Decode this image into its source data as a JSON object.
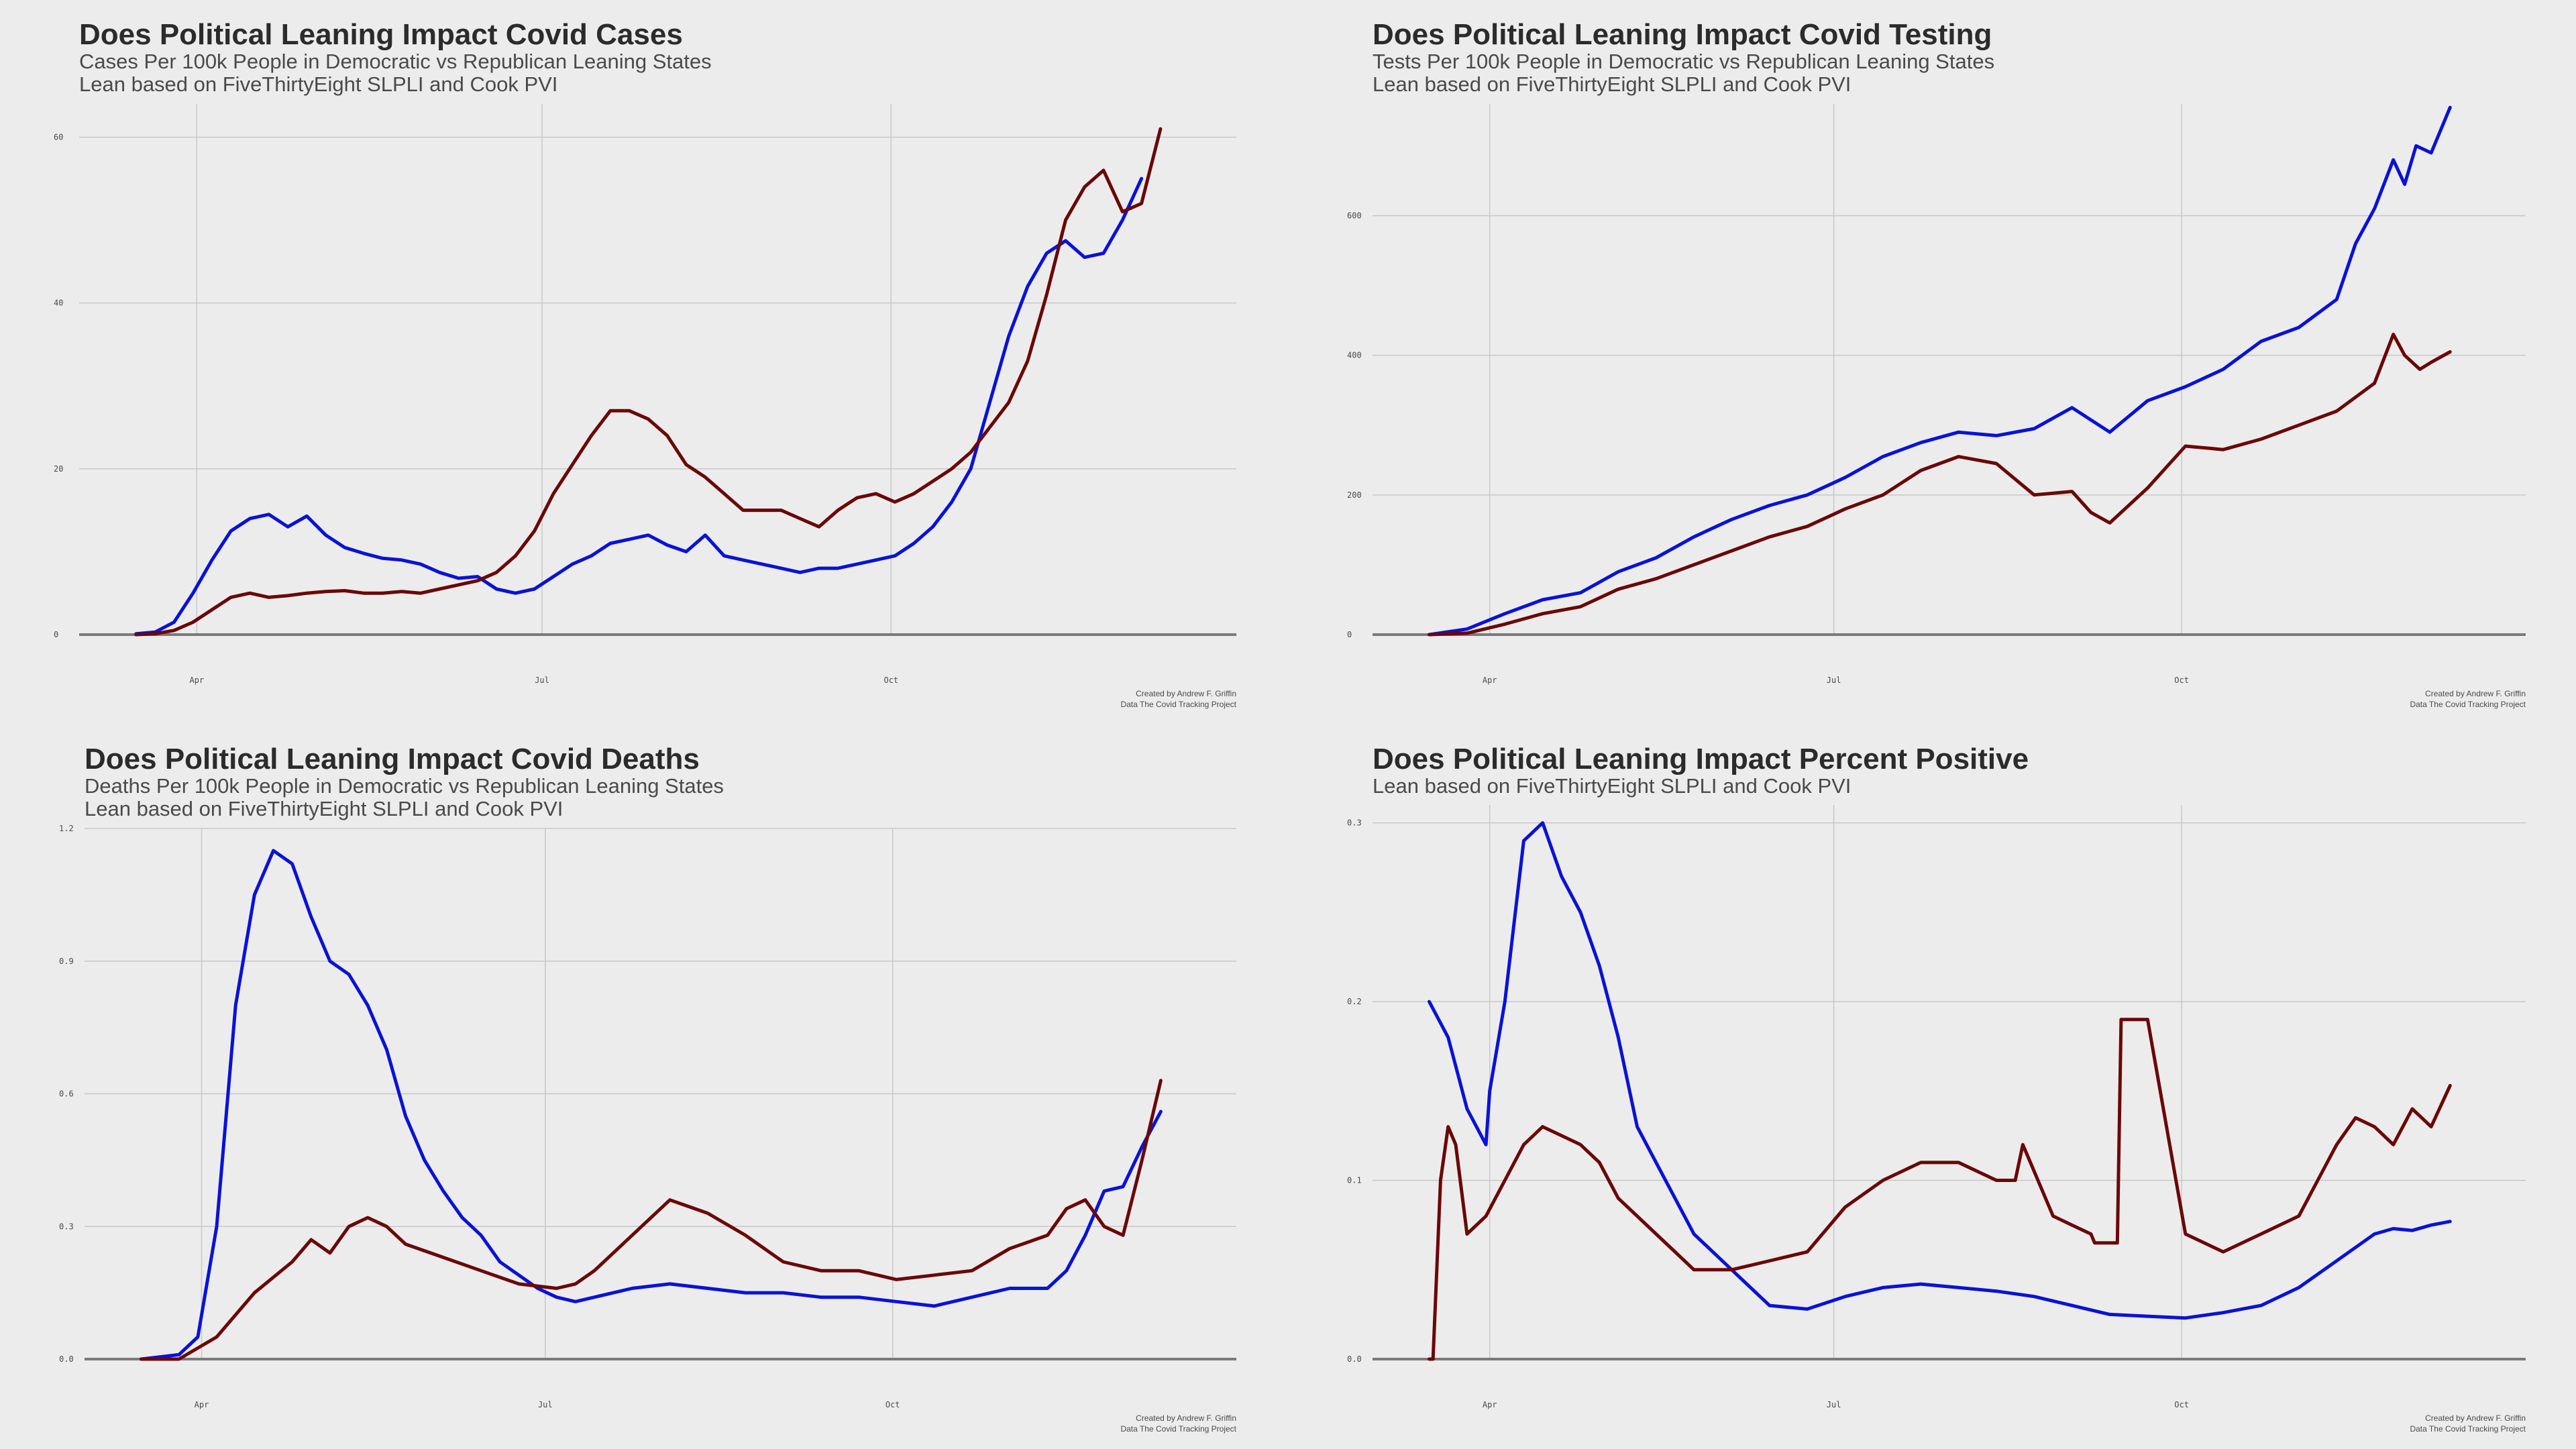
{
  "colors": {
    "background": "#ececec",
    "grid": "#c8c8c8",
    "baseline": "#7a7a7a",
    "democratic": "#0a12d6",
    "republican": "#6b0707"
  },
  "chart_data": [
    {
      "type": "line",
      "title": "Does Political Leaning Impact Covid Cases",
      "subtitle_lines": [
        "Cases Per 100k People in Democratic vs Republican Leaning States",
        "Lean based on FiveThirtyEight SLPLI and Cook PVI"
      ],
      "xlabel": "",
      "ylabel": "",
      "x_ticks": [
        "Apr",
        "Jul",
        "Oct"
      ],
      "y_ticks": [
        "0",
        "20",
        "40",
        "60"
      ],
      "x_range": [
        "2020-03-01",
        "2020-12-31"
      ],
      "ylim": [
        0,
        64
      ],
      "grid": true,
      "legend": "none",
      "caption": [
        "Created by Andrew F. Griffin",
        "Data The Covid Tracking Project"
      ],
      "series": [
        {
          "color": "democratic",
          "x": [
            "2020-03-16",
            "2020-03-21",
            "2020-03-26",
            "2020-03-31",
            "2020-04-05",
            "2020-04-10",
            "2020-04-15",
            "2020-04-20",
            "2020-04-25",
            "2020-04-30",
            "2020-05-05",
            "2020-05-10",
            "2020-05-15",
            "2020-05-20",
            "2020-05-25",
            "2020-05-30",
            "2020-06-04",
            "2020-06-09",
            "2020-06-14",
            "2020-06-19",
            "2020-06-24",
            "2020-06-29",
            "2020-07-04",
            "2020-07-09",
            "2020-07-14",
            "2020-07-19",
            "2020-07-24",
            "2020-07-29",
            "2020-08-03",
            "2020-08-08",
            "2020-08-13",
            "2020-08-18",
            "2020-08-23",
            "2020-08-28",
            "2020-09-02",
            "2020-09-07",
            "2020-09-12",
            "2020-09-17",
            "2020-09-22",
            "2020-09-27",
            "2020-10-02",
            "2020-10-07",
            "2020-10-12",
            "2020-10-17",
            "2020-10-22",
            "2020-10-27",
            "2020-11-01",
            "2020-11-06",
            "2020-11-11",
            "2020-11-16",
            "2020-11-21",
            "2020-11-26",
            "2020-12-01",
            "2020-12-06",
            "2020-12-11"
          ],
          "y": [
            0.1,
            0.3,
            1.5,
            5,
            9,
            12.5,
            14,
            14.5,
            13,
            14.3,
            12,
            10.5,
            9.8,
            9.2,
            9,
            8.5,
            7.5,
            6.8,
            7,
            5.5,
            5,
            5.5,
            7,
            8.5,
            9.5,
            11,
            11.5,
            12,
            10.8,
            10,
            12,
            9.5,
            9,
            8.5,
            8,
            7.5,
            8,
            8,
            8.5,
            9,
            9.5,
            11,
            13,
            16,
            20,
            28,
            36,
            42,
            46,
            47.5,
            45.5,
            46,
            50,
            55,
            null
          ]
        },
        {
          "color": "republican",
          "x": [
            "2020-03-16",
            "2020-03-21",
            "2020-03-26",
            "2020-03-31",
            "2020-04-05",
            "2020-04-10",
            "2020-04-15",
            "2020-04-20",
            "2020-04-25",
            "2020-04-30",
            "2020-05-05",
            "2020-05-10",
            "2020-05-15",
            "2020-05-20",
            "2020-05-25",
            "2020-05-30",
            "2020-06-04",
            "2020-06-09",
            "2020-06-14",
            "2020-06-19",
            "2020-06-24",
            "2020-06-29",
            "2020-07-04",
            "2020-07-09",
            "2020-07-14",
            "2020-07-19",
            "2020-07-24",
            "2020-07-29",
            "2020-08-03",
            "2020-08-08",
            "2020-08-13",
            "2020-08-18",
            "2020-08-23",
            "2020-08-28",
            "2020-09-02",
            "2020-09-07",
            "2020-09-12",
            "2020-09-17",
            "2020-09-22",
            "2020-09-27",
            "2020-10-02",
            "2020-10-07",
            "2020-10-12",
            "2020-10-17",
            "2020-10-22",
            "2020-10-27",
            "2020-11-01",
            "2020-11-06",
            "2020-11-11",
            "2020-11-16",
            "2020-11-21",
            "2020-11-26",
            "2020-12-01",
            "2020-12-06",
            "2020-12-11"
          ],
          "y": [
            0,
            0.1,
            0.5,
            1.5,
            3,
            4.5,
            5,
            4.5,
            4.7,
            5,
            5.2,
            5.3,
            5,
            5,
            5.2,
            5,
            5.5,
            6,
            6.5,
            7.5,
            9.5,
            12.5,
            17,
            20.5,
            24,
            27,
            27,
            26,
            24,
            20.5,
            19,
            17,
            15,
            15,
            15,
            14,
            13,
            15,
            16.5,
            17,
            16,
            17,
            18.5,
            20,
            22,
            25,
            28,
            33,
            41,
            50,
            54,
            56,
            51,
            52,
            61
          ]
        }
      ]
    },
    {
      "type": "line",
      "title": "Does Political Leaning Impact Covid Testing",
      "subtitle_lines": [
        "Tests Per 100k People in Democratic vs Republican Leaning States",
        "Lean based on FiveThirtyEight SLPLI and Cook PVI"
      ],
      "xlabel": "",
      "ylabel": "",
      "x_ticks": [
        "Apr",
        "Jul",
        "Oct"
      ],
      "y_ticks": [
        "0",
        "200",
        "400",
        "600"
      ],
      "x_range": [
        "2020-03-01",
        "2020-12-31"
      ],
      "ylim": [
        0,
        760
      ],
      "grid": true,
      "legend": "none",
      "caption": [
        "Created by Andrew F. Griffin",
        "Data The Covid Tracking Project"
      ],
      "series": [
        {
          "color": "democratic",
          "x": [
            "2020-03-16",
            "2020-03-26",
            "2020-04-05",
            "2020-04-15",
            "2020-04-25",
            "2020-05-05",
            "2020-05-15",
            "2020-05-25",
            "2020-06-04",
            "2020-06-14",
            "2020-06-24",
            "2020-07-04",
            "2020-07-14",
            "2020-07-24",
            "2020-08-03",
            "2020-08-13",
            "2020-08-23",
            "2020-09-02",
            "2020-09-12",
            "2020-09-22",
            "2020-10-02",
            "2020-10-12",
            "2020-10-22",
            "2020-11-01",
            "2020-11-11",
            "2020-11-16",
            "2020-11-21",
            "2020-11-26",
            "2020-11-29",
            "2020-12-02",
            "2020-12-06",
            "2020-12-11"
          ],
          "y": [
            0,
            8,
            30,
            50,
            60,
            90,
            110,
            140,
            165,
            185,
            200,
            225,
            255,
            275,
            290,
            285,
            295,
            325,
            290,
            335,
            355,
            380,
            420,
            440,
            480,
            560,
            610,
            680,
            645,
            700,
            690,
            755
          ]
        },
        {
          "color": "republican",
          "x": [
            "2020-03-16",
            "2020-03-26",
            "2020-04-05",
            "2020-04-15",
            "2020-04-25",
            "2020-05-05",
            "2020-05-15",
            "2020-05-25",
            "2020-06-04",
            "2020-06-14",
            "2020-06-24",
            "2020-07-04",
            "2020-07-14",
            "2020-07-24",
            "2020-08-03",
            "2020-08-13",
            "2020-08-23",
            "2020-09-02",
            "2020-09-07",
            "2020-09-12",
            "2020-09-22",
            "2020-10-02",
            "2020-10-12",
            "2020-10-22",
            "2020-11-01",
            "2020-11-11",
            "2020-11-21",
            "2020-11-26",
            "2020-11-29",
            "2020-12-03",
            "2020-12-06",
            "2020-12-11"
          ],
          "y": [
            0,
            2,
            15,
            30,
            40,
            65,
            80,
            100,
            120,
            140,
            155,
            180,
            200,
            235,
            255,
            245,
            200,
            205,
            175,
            160,
            210,
            270,
            265,
            280,
            300,
            320,
            360,
            430,
            400,
            380,
            390,
            405
          ]
        }
      ]
    },
    {
      "type": "line",
      "title": "Does Political Leaning Impact Covid Deaths",
      "subtitle_lines": [
        "Deaths Per 100k People in Democratic vs Republican Leaning States",
        "Lean based on FiveThirtyEight SLPLI and Cook PVI"
      ],
      "xlabel": "",
      "ylabel": "",
      "x_ticks": [
        "Apr",
        "Jul",
        "Oct"
      ],
      "y_ticks": [
        "0.0",
        "0.3",
        "0.6",
        "0.9",
        "1.2"
      ],
      "x_range": [
        "2020-03-01",
        "2020-12-31"
      ],
      "ylim": [
        0,
        1.2
      ],
      "grid": true,
      "legend": "none",
      "caption": [
        "Created by Andrew F. Griffin",
        "Data The Covid Tracking Project"
      ],
      "series": [
        {
          "color": "democratic",
          "x": [
            "2020-03-16",
            "2020-03-26",
            "2020-03-31",
            "2020-04-05",
            "2020-04-10",
            "2020-04-15",
            "2020-04-20",
            "2020-04-25",
            "2020-04-30",
            "2020-05-05",
            "2020-05-10",
            "2020-05-15",
            "2020-05-20",
            "2020-05-25",
            "2020-05-30",
            "2020-06-04",
            "2020-06-09",
            "2020-06-14",
            "2020-06-19",
            "2020-06-24",
            "2020-06-29",
            "2020-07-04",
            "2020-07-09",
            "2020-07-14",
            "2020-07-24",
            "2020-08-03",
            "2020-08-13",
            "2020-08-23",
            "2020-09-02",
            "2020-09-12",
            "2020-09-22",
            "2020-10-02",
            "2020-10-12",
            "2020-10-22",
            "2020-11-01",
            "2020-11-11",
            "2020-11-16",
            "2020-11-21",
            "2020-11-26",
            "2020-12-01",
            "2020-12-06",
            "2020-12-11"
          ],
          "y": [
            0,
            0.01,
            0.05,
            0.3,
            0.8,
            1.05,
            1.15,
            1.12,
            1.0,
            0.9,
            0.87,
            0.8,
            0.7,
            0.55,
            0.45,
            0.38,
            0.32,
            0.28,
            0.22,
            0.19,
            0.16,
            0.14,
            0.13,
            0.14,
            0.16,
            0.17,
            0.16,
            0.15,
            0.15,
            0.14,
            0.14,
            0.13,
            0.12,
            0.14,
            0.16,
            0.16,
            0.2,
            0.28,
            0.38,
            0.39,
            0.48,
            0.56
          ]
        },
        {
          "color": "republican",
          "x": [
            "2020-03-16",
            "2020-03-26",
            "2020-04-05",
            "2020-04-15",
            "2020-04-25",
            "2020-04-30",
            "2020-05-05",
            "2020-05-10",
            "2020-05-15",
            "2020-05-20",
            "2020-05-25",
            "2020-06-04",
            "2020-06-14",
            "2020-06-24",
            "2020-07-04",
            "2020-07-09",
            "2020-07-14",
            "2020-07-24",
            "2020-08-03",
            "2020-08-13",
            "2020-08-23",
            "2020-09-02",
            "2020-09-12",
            "2020-09-22",
            "2020-10-02",
            "2020-10-12",
            "2020-10-22",
            "2020-11-01",
            "2020-11-11",
            "2020-11-16",
            "2020-11-21",
            "2020-11-26",
            "2020-12-01",
            "2020-12-06",
            "2020-12-11"
          ],
          "y": [
            0,
            0,
            0.05,
            0.15,
            0.22,
            0.27,
            0.24,
            0.3,
            0.32,
            0.3,
            0.26,
            0.23,
            0.2,
            0.17,
            0.16,
            0.17,
            0.2,
            0.28,
            0.36,
            0.33,
            0.28,
            0.22,
            0.2,
            0.2,
            0.18,
            0.19,
            0.2,
            0.25,
            0.28,
            0.34,
            0.36,
            0.3,
            0.28,
            0.45,
            0.63
          ]
        }
      ]
    },
    {
      "type": "line",
      "title": "Does Political Leaning Impact Percent Positive",
      "subtitle_lines": [
        "Lean based on FiveThirtyEight SLPLI and Cook PVI"
      ],
      "xlabel": "",
      "ylabel": "",
      "x_ticks": [
        "Apr",
        "Jul",
        "Oct"
      ],
      "y_ticks": [
        "0.0",
        "0.1",
        "0.2",
        "0.3"
      ],
      "x_range": [
        "2020-03-01",
        "2020-12-31"
      ],
      "ylim": [
        0,
        0.31
      ],
      "grid": true,
      "legend": "none",
      "caption": [
        "Created by Andrew F. Griffin",
        "Data The Covid Tracking Project"
      ],
      "series": [
        {
          "color": "democratic",
          "x": [
            "2020-03-16",
            "2020-03-21",
            "2020-03-26",
            "2020-03-31",
            "2020-04-01",
            "2020-04-05",
            "2020-04-10",
            "2020-04-15",
            "2020-04-20",
            "2020-04-25",
            "2020-04-30",
            "2020-05-05",
            "2020-05-10",
            "2020-05-15",
            "2020-05-20",
            "2020-05-25",
            "2020-05-30",
            "2020-06-04",
            "2020-06-14",
            "2020-06-24",
            "2020-07-04",
            "2020-07-14",
            "2020-07-24",
            "2020-08-03",
            "2020-08-13",
            "2020-08-23",
            "2020-09-02",
            "2020-09-12",
            "2020-09-22",
            "2020-10-02",
            "2020-10-12",
            "2020-10-22",
            "2020-11-01",
            "2020-11-11",
            "2020-11-21",
            "2020-11-26",
            "2020-12-01",
            "2020-12-06",
            "2020-12-11"
          ],
          "y": [
            0.2,
            0.18,
            0.14,
            0.12,
            0.15,
            0.2,
            0.29,
            0.3,
            0.27,
            0.25,
            0.22,
            0.18,
            0.13,
            0.11,
            0.09,
            0.07,
            0.06,
            0.05,
            0.03,
            0.028,
            0.035,
            0.04,
            0.042,
            0.04,
            0.038,
            0.035,
            0.03,
            0.025,
            0.024,
            0.023,
            0.026,
            0.03,
            0.04,
            0.055,
            0.07,
            0.073,
            0.072,
            0.075,
            0.077
          ]
        },
        {
          "color": "republican",
          "x": [
            "2020-03-16",
            "2020-03-17",
            "2020-03-19",
            "2020-03-21",
            "2020-03-23",
            "2020-03-26",
            "2020-03-31",
            "2020-04-05",
            "2020-04-10",
            "2020-04-15",
            "2020-04-20",
            "2020-04-25",
            "2020-04-30",
            "2020-05-05",
            "2020-05-10",
            "2020-05-15",
            "2020-05-20",
            "2020-05-25",
            "2020-05-30",
            "2020-06-04",
            "2020-06-14",
            "2020-06-24",
            "2020-07-04",
            "2020-07-14",
            "2020-07-24",
            "2020-08-03",
            "2020-08-13",
            "2020-08-18",
            "2020-08-20",
            "2020-08-22",
            "2020-08-28",
            "2020-09-02",
            "2020-09-07",
            "2020-09-08",
            "2020-09-14",
            "2020-09-15",
            "2020-09-22",
            "2020-10-02",
            "2020-10-12",
            "2020-10-22",
            "2020-11-01",
            "2020-11-06",
            "2020-11-11",
            "2020-11-16",
            "2020-11-21",
            "2020-11-26",
            "2020-12-01",
            "2020-12-06",
            "2020-12-11"
          ],
          "y": [
            0,
            0,
            0.1,
            0.13,
            0.12,
            0.07,
            0.08,
            0.1,
            0.12,
            0.13,
            0.125,
            0.12,
            0.11,
            0.09,
            0.08,
            0.07,
            0.06,
            0.05,
            0.05,
            0.05,
            0.055,
            0.06,
            0.085,
            0.1,
            0.11,
            0.11,
            0.1,
            0.1,
            0.12,
            0.11,
            0.08,
            0.075,
            0.07,
            0.065,
            0.065,
            0.19,
            0.19,
            0.07,
            0.06,
            0.07,
            0.08,
            0.1,
            0.12,
            0.135,
            0.13,
            0.12,
            0.14,
            0.13,
            0.153
          ]
        }
      ]
    }
  ]
}
